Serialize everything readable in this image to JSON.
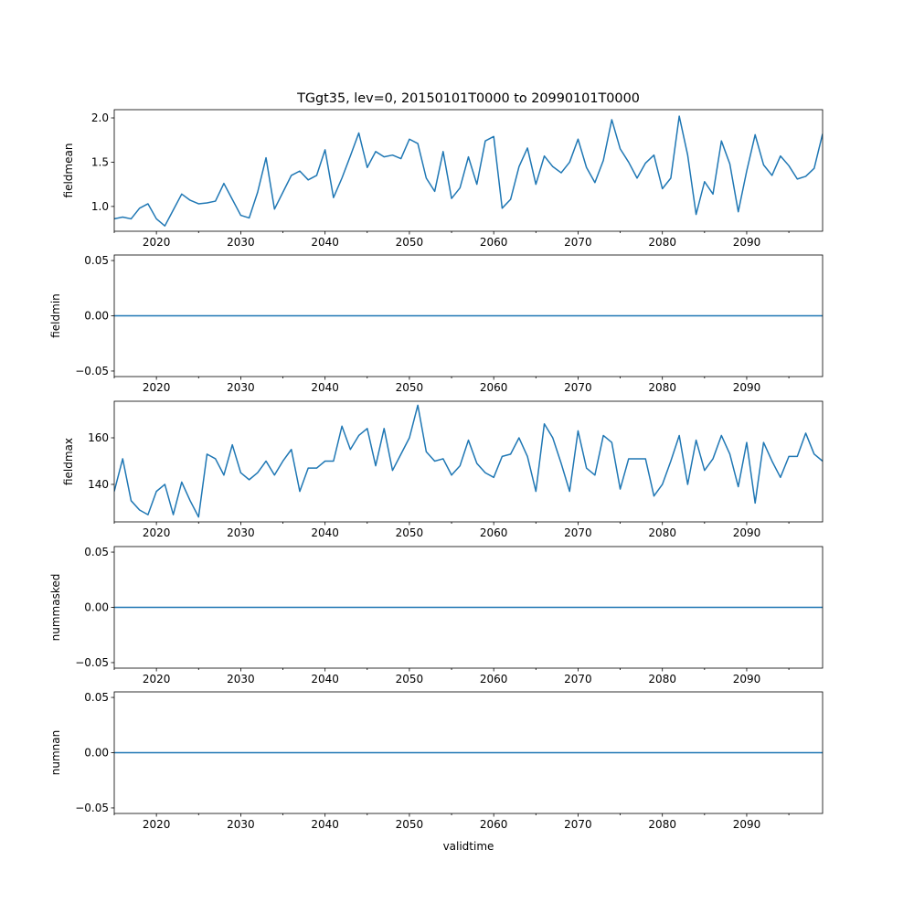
{
  "chart_data": [
    {
      "type": "line",
      "title": "TGgt35, lev=0, 20150101T0000 to 20990101T0000",
      "ylabel": "fieldmean",
      "xlabel": "",
      "xlim": [
        2015,
        2099
      ],
      "ylim": [
        0.72,
        2.093
      ],
      "xticks": [
        2020,
        2030,
        2040,
        2050,
        2060,
        2070,
        2080,
        2090
      ],
      "yticks": [
        1.0,
        1.5,
        2.0
      ],
      "ytick_labels": [
        "1.0",
        "1.5",
        "2.0"
      ],
      "x_start": 2015,
      "values": [
        0.86,
        0.88,
        0.86,
        0.98,
        1.03,
        0.86,
        0.78,
        0.96,
        1.14,
        1.07,
        1.03,
        1.04,
        1.06,
        1.26,
        1.08,
        0.9,
        0.87,
        1.16,
        1.55,
        0.97,
        1.16,
        1.35,
        1.4,
        1.3,
        1.35,
        1.64,
        1.1,
        1.32,
        1.57,
        1.83,
        1.44,
        1.62,
        1.56,
        1.58,
        1.54,
        1.76,
        1.71,
        1.32,
        1.17,
        1.62,
        1.09,
        1.21,
        1.56,
        1.25,
        1.74,
        1.79,
        0.98,
        1.08,
        1.45,
        1.66,
        1.25,
        1.57,
        1.45,
        1.38,
        1.5,
        1.76,
        1.44,
        1.27,
        1.52,
        1.98,
        1.65,
        1.5,
        1.32,
        1.49,
        1.58,
        1.2,
        1.32,
        2.02,
        1.58,
        0.91,
        1.28,
        1.14,
        1.74,
        1.48,
        0.94,
        1.4,
        1.81,
        1.47,
        1.35,
        1.57,
        1.46,
        1.31,
        1.34,
        1.43,
        1.82
      ]
    },
    {
      "type": "line",
      "title": "",
      "ylabel": "fieldmin",
      "xlabel": "",
      "xlim": [
        2015,
        2099
      ],
      "ylim": [
        -0.055,
        0.055
      ],
      "xticks": [
        2020,
        2030,
        2040,
        2050,
        2060,
        2070,
        2080,
        2090
      ],
      "yticks": [
        -0.05,
        0.0,
        0.05
      ],
      "ytick_labels": [
        "−0.05",
        "0.00",
        "0.05"
      ],
      "x_start": 2015,
      "constant": 0,
      "count": 85
    },
    {
      "type": "line",
      "title": "",
      "ylabel": "fieldmax",
      "xlabel": "",
      "xlim": [
        2015,
        2099
      ],
      "ylim": [
        123.9,
        175.7
      ],
      "xticks": [
        2020,
        2030,
        2040,
        2050,
        2060,
        2070,
        2080,
        2090
      ],
      "yticks": [
        140,
        160
      ],
      "ytick_labels": [
        "140",
        "160"
      ],
      "x_start": 2015,
      "values": [
        137,
        151,
        133,
        129,
        127,
        137,
        140,
        127,
        141,
        133,
        126,
        153,
        151,
        144,
        157,
        145,
        142,
        145,
        150,
        144,
        150,
        155,
        137,
        147,
        147,
        150,
        150,
        165,
        155,
        161,
        164,
        148,
        164,
        146,
        153,
        160,
        174,
        154,
        150,
        151,
        144,
        148,
        159,
        149,
        145,
        143,
        152,
        153,
        160,
        152,
        137,
        166,
        160,
        149,
        137,
        163,
        147,
        144,
        161,
        158,
        138,
        151,
        151,
        151,
        135,
        140,
        150,
        161,
        140,
        159,
        146,
        151,
        161,
        153,
        139,
        158,
        132,
        158,
        150,
        143,
        152,
        152,
        162,
        153,
        150
      ]
    },
    {
      "type": "line",
      "title": "",
      "ylabel": "nummasked",
      "xlabel": "",
      "xlim": [
        2015,
        2099
      ],
      "ylim": [
        -0.055,
        0.055
      ],
      "xticks": [
        2020,
        2030,
        2040,
        2050,
        2060,
        2070,
        2080,
        2090
      ],
      "yticks": [
        -0.05,
        0.0,
        0.05
      ],
      "ytick_labels": [
        "−0.05",
        "0.00",
        "0.05"
      ],
      "x_start": 2015,
      "constant": 0,
      "count": 85
    },
    {
      "type": "line",
      "title": "",
      "ylabel": "numnan",
      "xlabel": "validtime",
      "xlim": [
        2015,
        2099
      ],
      "ylim": [
        -0.055,
        0.055
      ],
      "xticks": [
        2020,
        2030,
        2040,
        2050,
        2060,
        2070,
        2080,
        2090
      ],
      "yticks": [
        -0.05,
        0.0,
        0.05
      ],
      "ytick_labels": [
        "−0.05",
        "0.00",
        "0.05"
      ],
      "x_start": 2015,
      "constant": 0,
      "count": 85
    }
  ],
  "colors": {
    "line": "#1f77b4",
    "axes": "#000000"
  }
}
